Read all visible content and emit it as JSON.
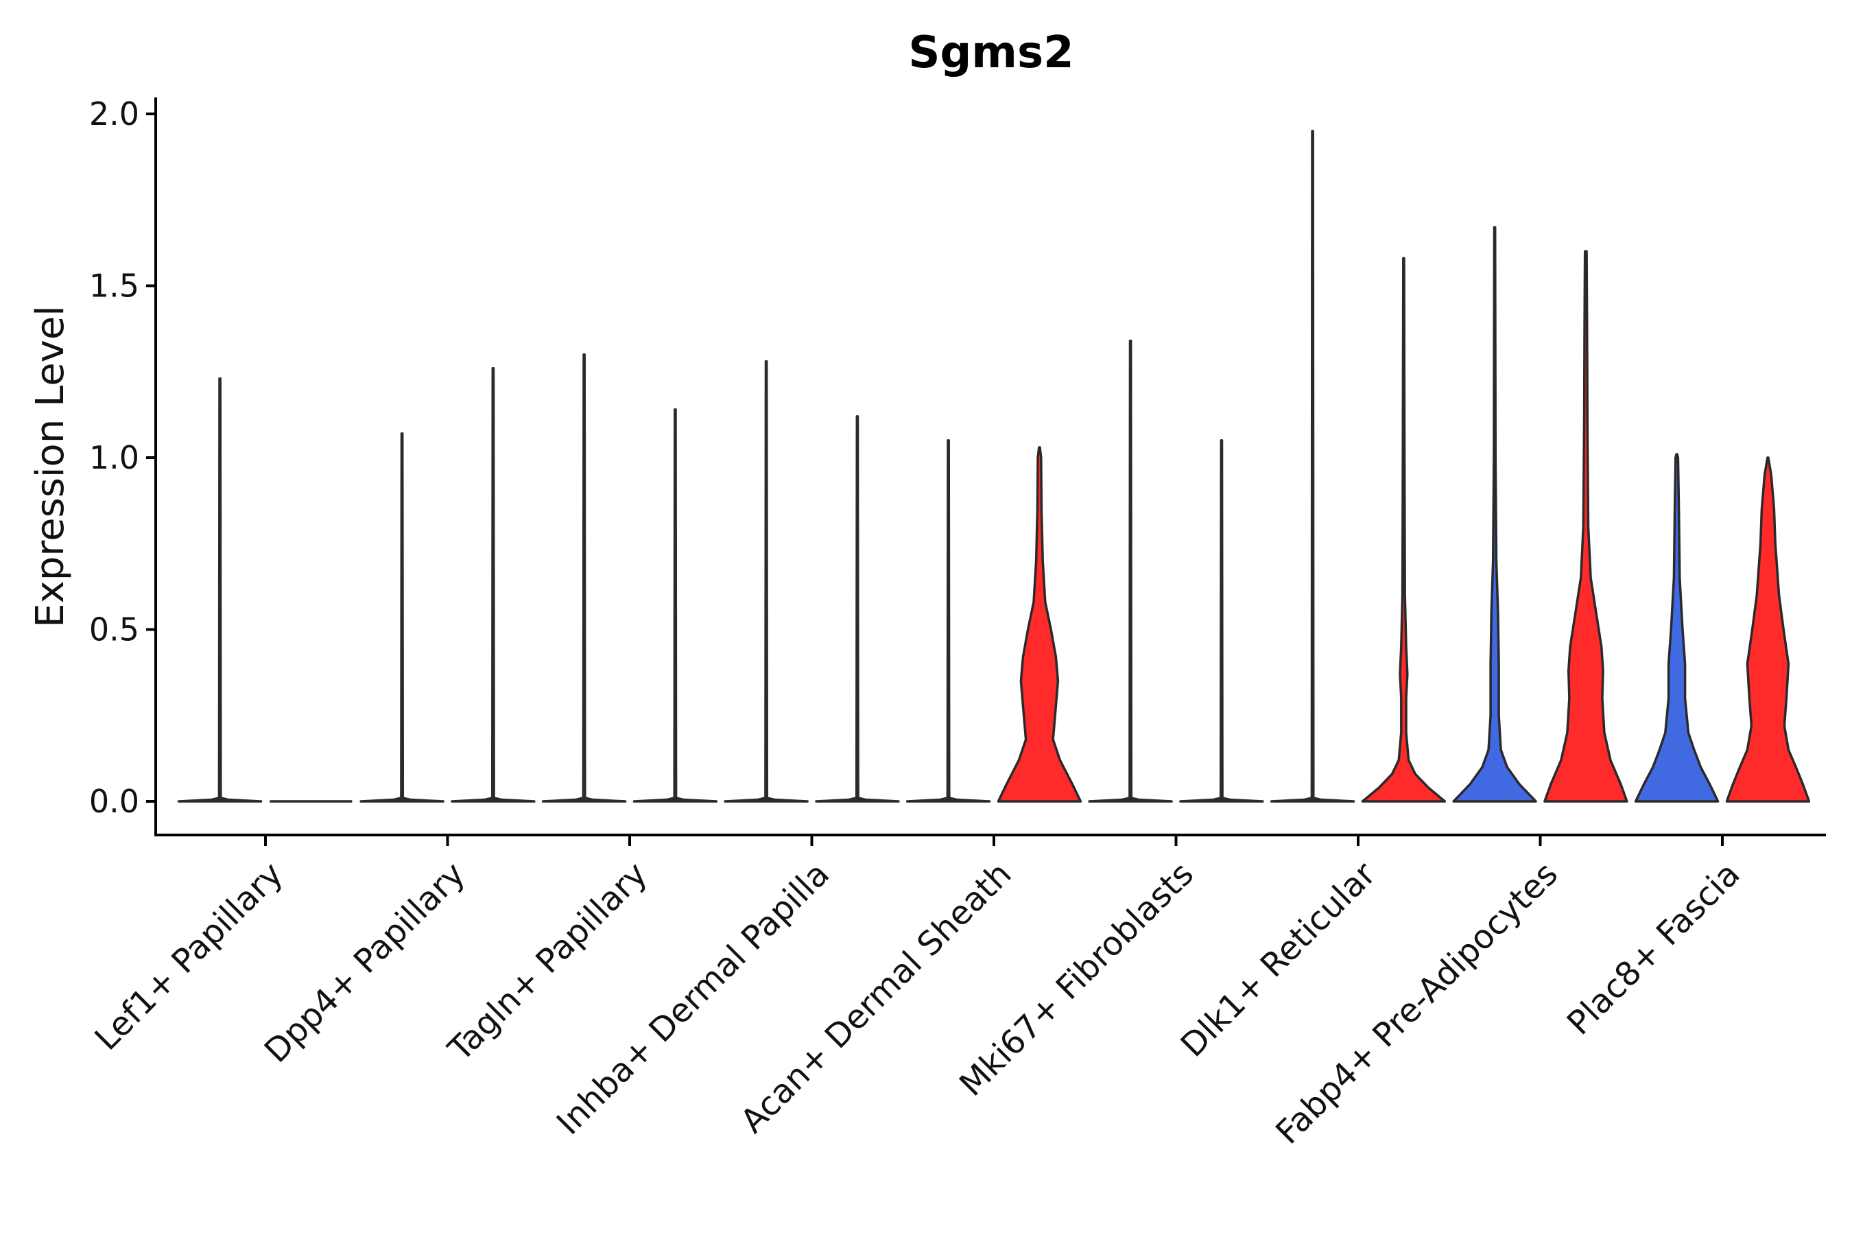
{
  "chart_data": {
    "type": "violin",
    "title": "Sgms2",
    "xlabel": "",
    "ylabel": "Expression Level",
    "ylim": [
      -0.1,
      2.05
    ],
    "yticks": [
      0.0,
      0.5,
      1.0,
      1.5,
      2.0
    ],
    "ytick_labels": [
      "0.0",
      "0.5",
      "1.0",
      "1.5",
      "2.0"
    ],
    "colors": {
      "blue": "#4169e1",
      "red": "#ff2a2a",
      "outline": "#2a2a2a"
    },
    "categories": [
      "Lef1+ Papillary",
      "Dpp4+ Papillary",
      "Tagln+ Papillary",
      "Inhba+ Dermal Papilla",
      "Acan+ Dermal Sheath",
      "Mki67+ Fibroblasts",
      "Dlk1+ Reticular",
      "Fabp4+ Pre-Adipocytes",
      "Plac8+ Fascia"
    ],
    "split_groups": [
      "blue",
      "red"
    ],
    "violins": [
      {
        "category": "Lef1+ Papillary",
        "group": "blue",
        "max": 1.23,
        "profile": [
          [
            0.0,
            1.0
          ],
          [
            0.005,
            0.2
          ],
          [
            0.01,
            0.02
          ],
          [
            1.23,
            0.01
          ]
        ]
      },
      {
        "category": "Lef1+ Papillary",
        "group": "red",
        "max": 0.0,
        "profile": [
          [
            0.0,
            0.0
          ]
        ]
      },
      {
        "category": "Dpp4+ Papillary",
        "group": "blue",
        "max": 1.07,
        "profile": [
          [
            0.0,
            1.0
          ],
          [
            0.005,
            0.2
          ],
          [
            0.01,
            0.02
          ],
          [
            1.07,
            0.01
          ]
        ]
      },
      {
        "category": "Dpp4+ Papillary",
        "group": "red",
        "max": 1.26,
        "profile": [
          [
            0.0,
            1.0
          ],
          [
            0.005,
            0.2
          ],
          [
            0.01,
            0.02
          ],
          [
            1.26,
            0.01
          ]
        ]
      },
      {
        "category": "Tagln+ Papillary",
        "group": "blue",
        "max": 1.3,
        "profile": [
          [
            0.0,
            1.0
          ],
          [
            0.005,
            0.2
          ],
          [
            0.01,
            0.02
          ],
          [
            1.3,
            0.01
          ]
        ]
      },
      {
        "category": "Tagln+ Papillary",
        "group": "red",
        "max": 1.14,
        "profile": [
          [
            0.0,
            1.0
          ],
          [
            0.005,
            0.2
          ],
          [
            0.01,
            0.02
          ],
          [
            1.14,
            0.01
          ]
        ]
      },
      {
        "category": "Inhba+ Dermal Papilla",
        "group": "blue",
        "max": 1.28,
        "profile": [
          [
            0.0,
            1.0
          ],
          [
            0.005,
            0.2
          ],
          [
            0.01,
            0.02
          ],
          [
            1.28,
            0.01
          ]
        ]
      },
      {
        "category": "Inhba+ Dermal Papilla",
        "group": "red",
        "max": 1.12,
        "profile": [
          [
            0.0,
            1.0
          ],
          [
            0.005,
            0.2
          ],
          [
            0.01,
            0.02
          ],
          [
            1.12,
            0.01
          ]
        ]
      },
      {
        "category": "Acan+ Dermal Sheath",
        "group": "blue",
        "max": 1.05,
        "profile": [
          [
            0.0,
            1.0
          ],
          [
            0.005,
            0.2
          ],
          [
            0.01,
            0.02
          ],
          [
            1.05,
            0.01
          ]
        ]
      },
      {
        "category": "Acan+ Dermal Sheath",
        "group": "red",
        "max": 1.03,
        "profile": [
          [
            0.0,
            1.0
          ],
          [
            0.05,
            0.8
          ],
          [
            0.12,
            0.5
          ],
          [
            0.18,
            0.33
          ],
          [
            0.25,
            0.38
          ],
          [
            0.35,
            0.45
          ],
          [
            0.42,
            0.4
          ],
          [
            0.5,
            0.28
          ],
          [
            0.58,
            0.14
          ],
          [
            0.7,
            0.08
          ],
          [
            0.85,
            0.05
          ],
          [
            1.0,
            0.04
          ],
          [
            1.03,
            0.01
          ]
        ]
      },
      {
        "category": "Mki67+ Fibroblasts",
        "group": "blue",
        "max": 1.34,
        "profile": [
          [
            0.0,
            1.0
          ],
          [
            0.005,
            0.2
          ],
          [
            0.01,
            0.02
          ],
          [
            1.34,
            0.01
          ]
        ]
      },
      {
        "category": "Mki67+ Fibroblasts",
        "group": "red",
        "max": 1.05,
        "profile": [
          [
            0.0,
            1.0
          ],
          [
            0.005,
            0.2
          ],
          [
            0.01,
            0.02
          ],
          [
            1.05,
            0.01
          ]
        ]
      },
      {
        "category": "Dlk1+ Reticular",
        "group": "blue",
        "max": 1.95,
        "profile": [
          [
            0.0,
            1.0
          ],
          [
            0.005,
            0.2
          ],
          [
            0.01,
            0.02
          ],
          [
            1.95,
            0.01
          ]
        ]
      },
      {
        "category": "Dlk1+ Reticular",
        "group": "red",
        "max": 1.58,
        "profile": [
          [
            0.0,
            1.0
          ],
          [
            0.04,
            0.6
          ],
          [
            0.08,
            0.28
          ],
          [
            0.12,
            0.12
          ],
          [
            0.2,
            0.06
          ],
          [
            0.3,
            0.06
          ],
          [
            0.37,
            0.09
          ],
          [
            0.45,
            0.06
          ],
          [
            0.6,
            0.03
          ],
          [
            1.0,
            0.02
          ],
          [
            1.58,
            0.01
          ]
        ]
      },
      {
        "category": "Fabp4+ Pre-Adipocytes",
        "group": "blue",
        "max": 1.67,
        "profile": [
          [
            0.0,
            1.0
          ],
          [
            0.05,
            0.6
          ],
          [
            0.1,
            0.3
          ],
          [
            0.15,
            0.15
          ],
          [
            0.25,
            0.1
          ],
          [
            0.4,
            0.1
          ],
          [
            0.55,
            0.08
          ],
          [
            0.7,
            0.04
          ],
          [
            1.0,
            0.02
          ],
          [
            1.67,
            0.01
          ]
        ]
      },
      {
        "category": "Fabp4+ Pre-Adipocytes",
        "group": "red",
        "max": 1.6,
        "profile": [
          [
            0.0,
            1.0
          ],
          [
            0.05,
            0.85
          ],
          [
            0.12,
            0.6
          ],
          [
            0.2,
            0.45
          ],
          [
            0.3,
            0.4
          ],
          [
            0.38,
            0.42
          ],
          [
            0.45,
            0.38
          ],
          [
            0.55,
            0.25
          ],
          [
            0.65,
            0.12
          ],
          [
            0.8,
            0.06
          ],
          [
            1.1,
            0.04
          ],
          [
            1.4,
            0.03
          ],
          [
            1.6,
            0.02
          ]
        ]
      },
      {
        "category": "Plac8+ Fascia",
        "group": "blue",
        "max": 1.01,
        "profile": [
          [
            0.0,
            1.0
          ],
          [
            0.05,
            0.8
          ],
          [
            0.1,
            0.58
          ],
          [
            0.15,
            0.42
          ],
          [
            0.2,
            0.28
          ],
          [
            0.3,
            0.2
          ],
          [
            0.4,
            0.2
          ],
          [
            0.5,
            0.14
          ],
          [
            0.65,
            0.07
          ],
          [
            0.85,
            0.05
          ],
          [
            1.0,
            0.03
          ],
          [
            1.01,
            0.01
          ]
        ]
      },
      {
        "category": "Plac8+ Fascia",
        "group": "red",
        "max": 1.0,
        "profile": [
          [
            0.0,
            1.0
          ],
          [
            0.05,
            0.85
          ],
          [
            0.1,
            0.68
          ],
          [
            0.15,
            0.5
          ],
          [
            0.22,
            0.4
          ],
          [
            0.3,
            0.45
          ],
          [
            0.4,
            0.5
          ],
          [
            0.5,
            0.38
          ],
          [
            0.6,
            0.27
          ],
          [
            0.75,
            0.18
          ],
          [
            0.85,
            0.15
          ],
          [
            0.95,
            0.08
          ],
          [
            1.0,
            0.01
          ]
        ]
      }
    ]
  }
}
